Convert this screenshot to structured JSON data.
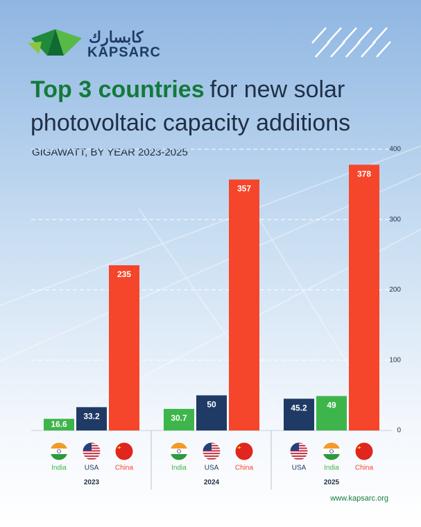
{
  "brand": {
    "name": "KAPSARC",
    "arabic": "كابسارك",
    "url": "www.kapsarc.org"
  },
  "chart_data": {
    "type": "bar",
    "title": {
      "highlight": "Top 3 countries",
      "line1": "for new solar",
      "line2": "photovoltaic capacity additions"
    },
    "subtitle": "GIGAWATT, BY YEAR 2023-2025",
    "ylim": [
      0,
      400
    ],
    "yticks": [
      0,
      100,
      200,
      300,
      400
    ],
    "grid": true,
    "groups": [
      {
        "label": "2023",
        "bars": [
          {
            "name": "India",
            "value": 16.6,
            "color": "#3db54a"
          },
          {
            "name": "USA",
            "value": 33.2,
            "color": "#1f3a64"
          },
          {
            "name": "China",
            "value": 235,
            "color": "#f5452a"
          }
        ]
      },
      {
        "label": "2024",
        "bars": [
          {
            "name": "India",
            "value": 30.7,
            "color": "#3db54a"
          },
          {
            "name": "USA",
            "value": 50,
            "color": "#1f3a64"
          },
          {
            "name": "China",
            "value": 357,
            "color": "#f5452a"
          }
        ]
      },
      {
        "label": "2025",
        "bars": [
          {
            "name": "USA",
            "value": 45.2,
            "color": "#1f3a64"
          },
          {
            "name": "India",
            "value": 49,
            "color": "#3db54a"
          },
          {
            "name": "China",
            "value": 378,
            "color": "#f5452a"
          }
        ]
      }
    ]
  }
}
